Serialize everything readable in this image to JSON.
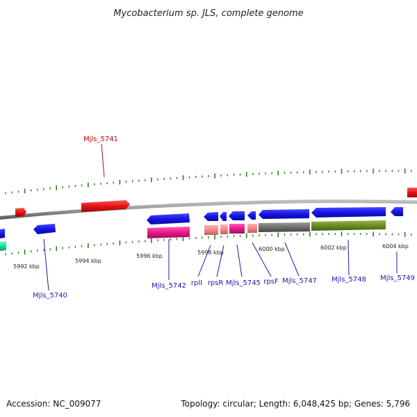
{
  "title": "Mycobacterium sp. JLS, complete genome",
  "footer": {
    "accession": "Accession: NC_009077",
    "summary": "Topology: circular; Length: 6,048,425 bp; Genes: 5,796"
  },
  "colors": {
    "backbone": "#8a8a8a",
    "tick": "#2e7d1f",
    "label_blue": "#1a1aa6",
    "label_red": "#cc0000",
    "cds_blue": "#1414e6",
    "cds_red": "#e61414",
    "pink": "#e8188c",
    "salmon": "#f08a8a",
    "gray": "#6e6e6e",
    "olive": "#6b8e23",
    "teal": "#17e0a0"
  },
  "scale_labels": [
    "5992 kbp",
    "5994 kbp",
    "5996 kbp",
    "5998 kbp",
    "6000 kbp",
    "6002 kbp",
    "6004 kbp"
  ],
  "gene_labels": [
    {
      "text": "Mjls_5741",
      "color": "red"
    },
    {
      "text": "Mjls_5740",
      "color": "blue"
    },
    {
      "text": "Mjls_5742",
      "color": "blue"
    },
    {
      "text": "rplI",
      "color": "blue"
    },
    {
      "text": "rpsR",
      "color": "blue"
    },
    {
      "text": "Mjls_5745",
      "color": "blue"
    },
    {
      "text": "rpsF",
      "color": "blue"
    },
    {
      "text": "Mjls_5747",
      "color": "blue"
    },
    {
      "text": "Mjls_5748",
      "color": "blue"
    },
    {
      "text": "Mjls_5749",
      "color": "blue"
    }
  ]
}
